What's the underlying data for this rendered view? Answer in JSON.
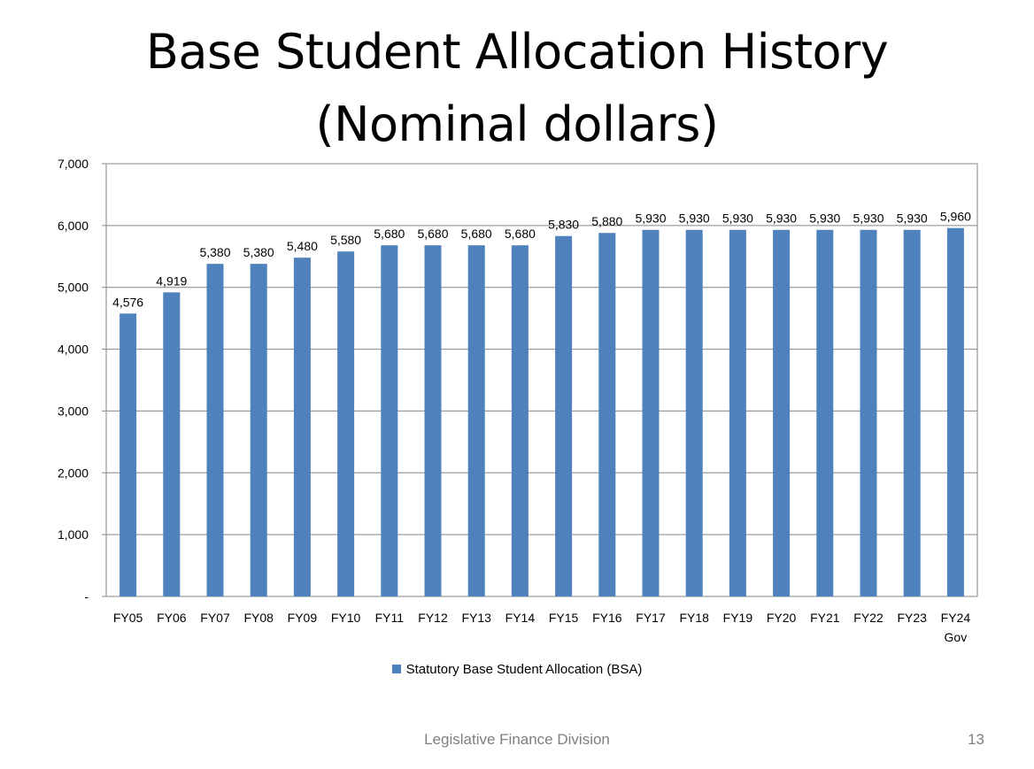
{
  "slide": {
    "title_line1": "Base Student Allocation History",
    "title_line2": "(Nominal dollars)",
    "footer": "Legislative Finance Division",
    "page_number": "13"
  },
  "colors": {
    "bar": "#4f81bd",
    "gridline": "#868686",
    "axis": "#868686"
  },
  "chart_data": {
    "type": "bar",
    "categories": [
      "FY05",
      "FY06",
      "FY07",
      "FY08",
      "FY09",
      "FY10",
      "FY11",
      "FY12",
      "FY13",
      "FY14",
      "FY15",
      "FY16",
      "FY17",
      "FY18",
      "FY19",
      "FY20",
      "FY21",
      "FY22",
      "FY23",
      "FY24 Gov"
    ],
    "series": [
      {
        "name": "Statutory Base Student Allocation (BSA)",
        "values": [
          4576,
          4919,
          5380,
          5380,
          5480,
          5580,
          5680,
          5680,
          5680,
          5680,
          5830,
          5880,
          5930,
          5930,
          5930,
          5930,
          5930,
          5930,
          5930,
          5960
        ]
      }
    ],
    "data_labels": [
      "4,576",
      "4,919",
      "5,380",
      "5,380",
      "5,480",
      "5,580",
      "5,680",
      "5,680",
      "5,680",
      "5,680",
      "5,830",
      "5,880",
      "5,930",
      "5,930",
      "5,930",
      "5,930",
      "5,930",
      "5,930",
      "5,930",
      "5,960"
    ],
    "title": "Base Student Allocation History (Nominal dollars)",
    "xlabel": "",
    "ylabel": "",
    "ylim": [
      0,
      7000
    ],
    "yticks": [
      0,
      1000,
      2000,
      3000,
      4000,
      5000,
      6000,
      7000
    ],
    "ytick_labels": [
      "-",
      "1,000",
      "2,000",
      "3,000",
      "4,000",
      "5,000",
      "6,000",
      "7,000"
    ],
    "grid": true,
    "legend": "bottom"
  }
}
